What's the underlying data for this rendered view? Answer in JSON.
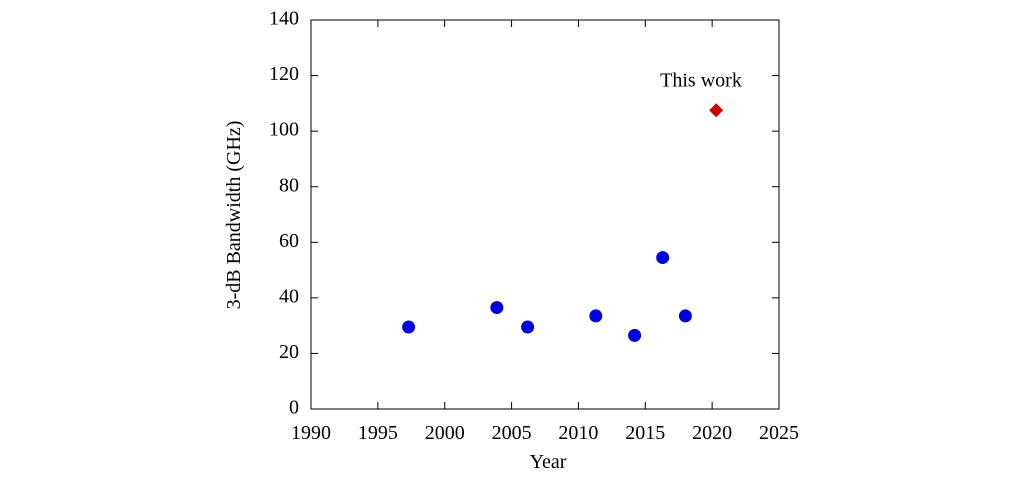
{
  "chart_data": {
    "type": "scatter",
    "xlabel": "Year",
    "ylabel": "3-dB Bandwidth (GHz)",
    "xlim": [
      1990,
      2025
    ],
    "xticks": [
      1990,
      1995,
      2000,
      2005,
      2010,
      2015,
      2020,
      2025
    ],
    "ylim": [
      0,
      140
    ],
    "yticks": [
      0,
      20,
      40,
      60,
      80,
      100,
      120,
      140
    ],
    "series": [
      {
        "color": "#0000dd",
        "marker": "circle",
        "x": [
          1997.3,
          2003.9,
          2006.2,
          2011.3,
          2014.2,
          2016.3,
          2018.0
        ],
        "values": [
          29.5,
          36.5,
          29.5,
          33.5,
          26.5,
          54.5,
          33.5
        ]
      },
      {
        "color": "#cc0000",
        "marker": "diamond",
        "x": [
          2020.3
        ],
        "values": [
          107.5
        ]
      }
    ],
    "annotation": "This work"
  }
}
